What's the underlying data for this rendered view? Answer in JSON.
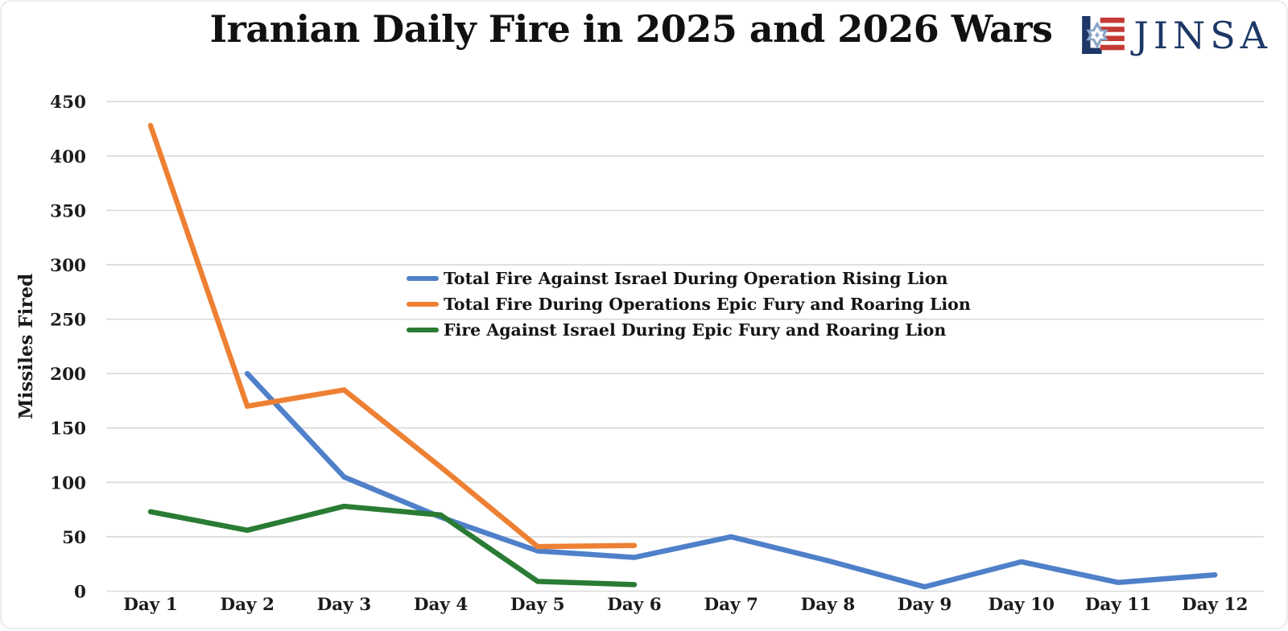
{
  "header": {
    "title": "Iranian Daily Fire in 2025 and 2026 Wars",
    "logo": {
      "text": "JINSA",
      "icon": "jinsa-star-flag-icon",
      "navy": "#1d3866",
      "red": "#c43a35",
      "star_blue": "#8aa5c6"
    }
  },
  "chart_data": {
    "type": "line",
    "title": "Iranian Daily Fire in 2025 and 2026 Wars",
    "xlabel": "",
    "ylabel": "Missiles Fired",
    "ylim": [
      0,
      450
    ],
    "ytick_step": 50,
    "yticks": [
      0,
      50,
      100,
      150,
      200,
      250,
      300,
      350,
      400,
      450
    ],
    "grid": "horizontal",
    "gridline_color": "#d9d9d9",
    "legend_position": "inside-center-left",
    "categories": [
      "Day 1",
      "Day 2",
      "Day 3",
      "Day 4",
      "Day 5",
      "Day 6",
      "Day 7",
      "Day 8",
      "Day 9",
      "Day 10",
      "Day 11",
      "Day 12"
    ],
    "series": [
      {
        "id": "rising-lion-total",
        "name": "Total Fire Against Israel During Operation Rising Lion",
        "color": "#4f80c9",
        "values": [
          null,
          200,
          105,
          68,
          37,
          31,
          50,
          28,
          4,
          27,
          8,
          15
        ]
      },
      {
        "id": "epic-fury-roaring-lion-total",
        "name": "Total Fire During Operations Epic Fury and Roaring Lion",
        "color": "#ee8033",
        "values": [
          428,
          170,
          185,
          114,
          41,
          42,
          null,
          null,
          null,
          null,
          null,
          null
        ]
      },
      {
        "id": "epic-fury-roaring-lion-israel",
        "name": "Fire Against Israel During Epic Fury and Roaring Lion",
        "color": "#2a7b33",
        "values": [
          73,
          56,
          78,
          70,
          9,
          6,
          null,
          null,
          null,
          null,
          null,
          null
        ]
      }
    ]
  }
}
